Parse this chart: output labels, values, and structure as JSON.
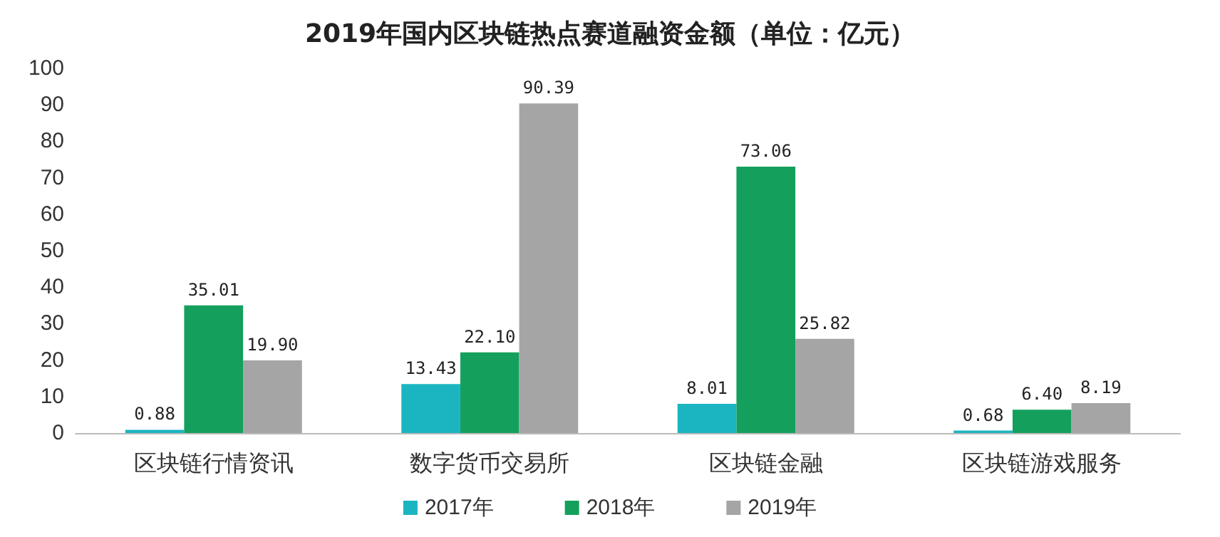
{
  "chart_data": {
    "type": "bar",
    "title": "2019年国内区块链热点赛道融资金额（单位：亿元）",
    "categories": [
      "区块链行情资讯",
      "数字货币交易所",
      "区块链金融",
      "区块链游戏服务"
    ],
    "series": [
      {
        "name": "2017年",
        "color": "#1bb5c1",
        "values": [
          0.88,
          13.43,
          8.01,
          0.68
        ],
        "value_labels": [
          "0.88",
          "13.43",
          "8.01",
          "0.68"
        ]
      },
      {
        "name": "2018年",
        "color": "#14a05c",
        "values": [
          35.01,
          22.1,
          73.06,
          6.4
        ],
        "value_labels": [
          "35.01",
          "22.10",
          "73.06",
          "6.40"
        ]
      },
      {
        "name": "2019年",
        "color": "#a5a5a5",
        "values": [
          19.9,
          90.39,
          25.82,
          8.19
        ],
        "value_labels": [
          "19.90",
          "90.39",
          "25.82",
          "8.19"
        ]
      }
    ],
    "ylim": [
      0,
      100
    ],
    "yticks": [
      0,
      10,
      20,
      30,
      40,
      50,
      60,
      70,
      80,
      90,
      100
    ],
    "grid": false,
    "legend": "bottom"
  }
}
